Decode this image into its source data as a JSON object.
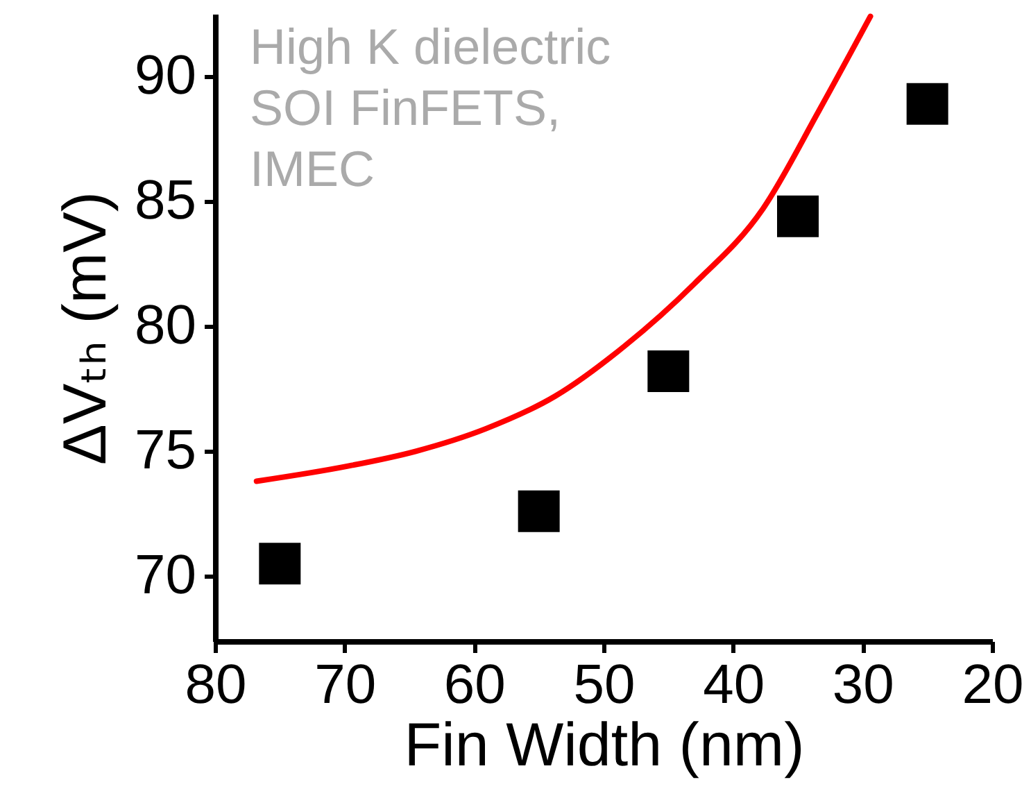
{
  "chart_data": {
    "type": "scatter",
    "xlabel": "Fin Width (nm)",
    "ylabel": "ΔVₜₕ (mV)",
    "annotations": [
      "High K dielectric\nSOI FinFETS,\nIMEC"
    ],
    "x": [
      75,
      55,
      45,
      35,
      25
    ],
    "xlim": [
      80,
      20
    ],
    "xticks": [
      80,
      70,
      60,
      50,
      40,
      30,
      20
    ],
    "ylim": [
      67.4,
      92.5
    ],
    "yticks": [
      70,
      75,
      80,
      85,
      90
    ],
    "grid": false,
    "series": [
      {
        "color": "#000000",
        "marker": "square",
        "values": [
          70.5,
          72.6,
          78.2,
          84.4,
          88.9
        ]
      },
      {
        "type": "line",
        "color": "#ff0000",
        "line_style": "solid",
        "x": [
          76.8,
          69.8,
          64.5,
          59.1,
          53.75,
          48.4,
          43.0,
          37.7,
          33.4,
          29.4
        ],
        "values": [
          73.8,
          74.4,
          75.0,
          75.9,
          77.2,
          79.2,
          81.7,
          84.7,
          88.6,
          92.4
        ]
      }
    ]
  }
}
